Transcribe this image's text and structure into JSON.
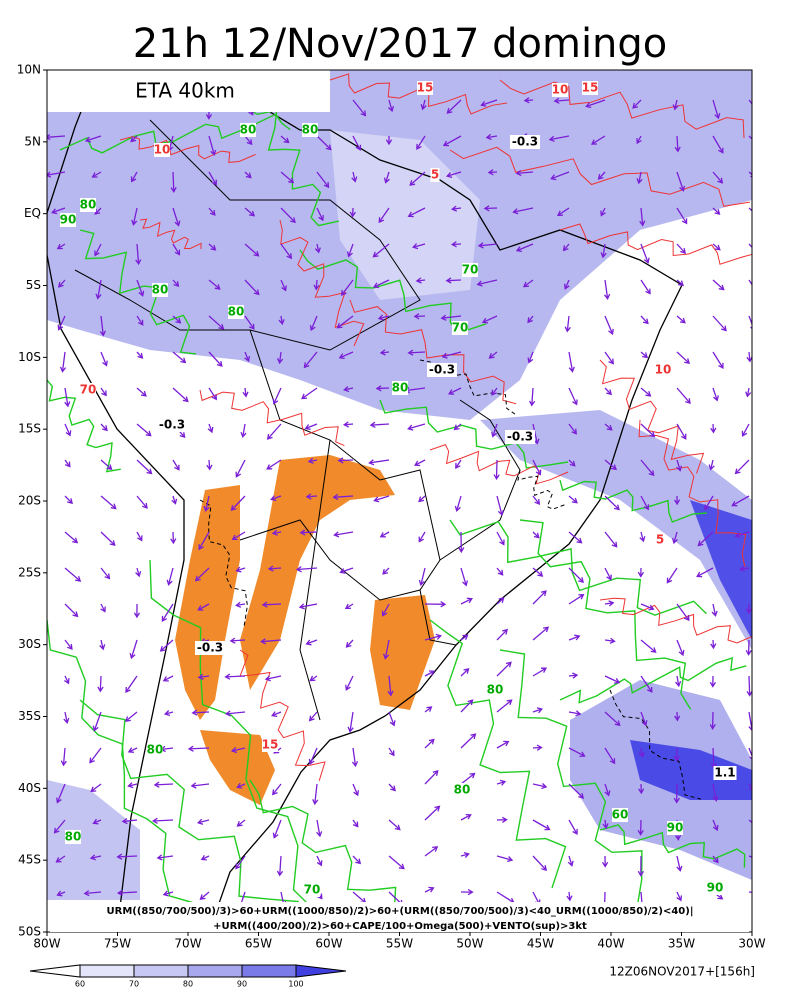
{
  "header": {
    "title": "21h 12/Nov/2017 domingo",
    "model": "ETA 40km"
  },
  "map": {
    "lat_labels": [
      "10N",
      "5N",
      "EQ",
      "5S",
      "10S",
      "15S",
      "20S",
      "25S",
      "30S",
      "35S",
      "40S",
      "45S",
      "50S"
    ],
    "lon_labels": [
      "80W",
      "75W",
      "70W",
      "65W",
      "60W",
      "55W",
      "50W",
      "45W",
      "40W",
      "35W",
      "30W"
    ],
    "contour_labels": [
      "80",
      "80",
      "90",
      "80",
      "80",
      "80",
      "10",
      "15",
      "10",
      "15",
      "-0.3",
      "5",
      "70",
      "70",
      "80",
      "-0.3",
      "-0.3",
      "-0.3",
      "70",
      "-0.3",
      "15",
      "80",
      "80",
      "80",
      "60",
      "90",
      "90",
      "80",
      "70",
      "1.1",
      "5",
      "10"
    ]
  },
  "footer": {
    "formula": [
      "URM((850/700/500)/3)>60+URM((1000/850)/2)>60+(URM((850/700/500)/3)<40_URM((1000/850)/2)<40)|",
      "+URM((400/200)/2)>60+CAPE/100+Omega(500)+VENTO(sup)>3kt"
    ],
    "colorbar_labels": [
      "60",
      "70",
      "80",
      "90",
      "100"
    ],
    "run": "12Z06NOV2017+[156h]"
  }
}
